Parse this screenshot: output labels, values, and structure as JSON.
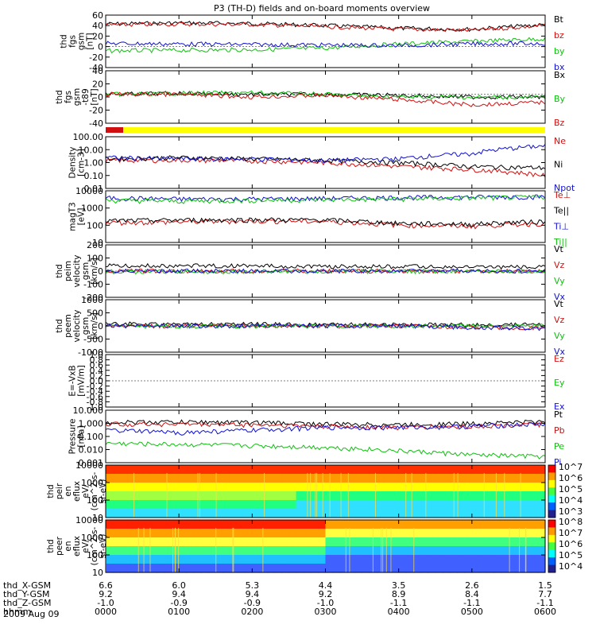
{
  "title": "P3 (TH-D) fields and on-board moments overview",
  "date_label": "2009 Aug 09",
  "colors": {
    "black": "#000000",
    "red": "#d01010",
    "green": "#10c010",
    "blue": "#1010d0",
    "yellow": "#ffff00"
  },
  "ephemeris": {
    "rows": [
      {
        "label": "thd_X-GSM",
        "values": [
          "6.6",
          "6.0",
          "5.3",
          "4.4",
          "3.5",
          "2.6",
          "1.5"
        ]
      },
      {
        "label": "thd_Y-GSM",
        "values": [
          "9.2",
          "9.4",
          "9.4",
          "9.2",
          "8.9",
          "8.4",
          "7.7"
        ]
      },
      {
        "label": "thd_Z-GSM",
        "values": [
          "-1.0",
          "-0.9",
          "-0.9",
          "-1.0",
          "-1.1",
          "-1.1",
          "-1.1"
        ]
      },
      {
        "label": "hhmm",
        "values": [
          "0000",
          "0100",
          "0200",
          "0300",
          "0400",
          "0500",
          "0600"
        ]
      }
    ]
  },
  "chart_data": [
    {
      "type": "line",
      "ylabel": [
        "thd",
        "fgs",
        "gsm",
        "[nT]"
      ],
      "ylim": [
        -40,
        60
      ],
      "scale": "linear",
      "ticks": [
        "60",
        "40",
        "20",
        "0",
        "-20",
        "-40"
      ],
      "legend": [
        "Bt",
        "bz",
        "by",
        "bx"
      ],
      "series": [
        {
          "name": "Bt",
          "color": "black",
          "level": [
            43,
            45,
            44,
            40,
            35,
            33,
            42
          ]
        },
        {
          "name": "bz",
          "color": "red",
          "level": [
            41,
            43,
            42,
            38,
            33,
            31,
            40
          ]
        },
        {
          "name": "by",
          "color": "green",
          "level": [
            -8,
            -7,
            -6,
            -3,
            5,
            10,
            15
          ]
        },
        {
          "name": "bx",
          "color": "blue",
          "level": [
            6,
            5,
            4,
            3,
            2,
            5,
            6
          ]
        }
      ]
    },
    {
      "type": "line",
      "ylabel": [
        "thd",
        "fgs",
        "gsm",
        "-t89",
        "[nT]"
      ],
      "ylim": [
        -55,
        45
      ],
      "scale": "linear",
      "ticks": [
        "40",
        "20",
        "0",
        "-20",
        "-40"
      ],
      "legend": [
        "Bx",
        "By",
        "Bz"
      ],
      "series": [
        {
          "name": "Bx",
          "color": "black",
          "level": [
            0,
            2,
            0,
            0,
            -2,
            -5,
            -5
          ]
        },
        {
          "name": "By",
          "color": "green",
          "level": [
            0,
            2,
            3,
            0,
            -5,
            -5,
            -6
          ]
        },
        {
          "name": "Bz",
          "color": "red",
          "level": [
            0,
            0,
            -5,
            -2,
            -10,
            -20,
            -15
          ]
        }
      ]
    },
    {
      "type": "line",
      "ylabel": [
        "Density",
        "[cm-3]"
      ],
      "ylim": [
        0.01,
        100
      ],
      "scale": "log",
      "ticks": [
        "100.00",
        "10.00",
        "1.00",
        "0.10",
        "0.01"
      ],
      "legend": [
        "Ne",
        "Ni",
        "Npot"
      ],
      "series": [
        {
          "name": "Ne",
          "color": "red",
          "level": [
            1.5,
            1.6,
            1.4,
            1.0,
            0.5,
            0.3,
            0.1
          ]
        },
        {
          "name": "Ni",
          "color": "black",
          "level": [
            2,
            2.5,
            2,
            1.5,
            1.0,
            0.5,
            0.4
          ]
        },
        {
          "name": "Npot",
          "color": "blue",
          "level": [
            2.5,
            2,
            2,
            1.5,
            2,
            5,
            20
          ]
        }
      ]
    },
    {
      "type": "line",
      "ylabel": [
        "magT3",
        "[eV]"
      ],
      "ylim": [
        3,
        20000
      ],
      "scale": "log",
      "ticks": [
        "10000",
        "1000",
        "100",
        "10"
      ],
      "legend": [
        "Te⊥",
        "Te||",
        "Ti⊥",
        "Ti||"
      ],
      "series": [
        {
          "name": "Ti⊥",
          "color": "blue",
          "level": [
            6000,
            5000,
            5000,
            5500,
            6500,
            7000,
            7500
          ]
        },
        {
          "name": "Ti||",
          "color": "green",
          "level": [
            4000,
            3500,
            4000,
            4500,
            5000,
            6000,
            7000
          ]
        },
        {
          "name": "Te⊥",
          "color": "red",
          "level": [
            90,
            100,
            120,
            110,
            60,
            50,
            80
          ]
        },
        {
          "name": "Te||",
          "color": "black",
          "level": [
            120,
            140,
            150,
            140,
            80,
            70,
            110
          ]
        }
      ]
    },
    {
      "type": "line",
      "ylabel": [
        "thd",
        "peim",
        "velocity",
        "gsm",
        "[km/s]"
      ],
      "ylim": [
        -200,
        200
      ],
      "scale": "linear",
      "ticks": [
        "200",
        "100",
        "0",
        "-100",
        "-200"
      ],
      "legend": [
        "Vt",
        "Vz",
        "Vy",
        "Vx"
      ],
      "series": [
        {
          "name": "Vt",
          "color": "black",
          "level": [
            40,
            40,
            40,
            35,
            35,
            30,
            30
          ]
        },
        {
          "name": "Vz",
          "color": "red",
          "level": [
            0,
            0,
            0,
            0,
            0,
            0,
            0
          ]
        },
        {
          "name": "Vy",
          "color": "green",
          "level": [
            -5,
            -5,
            -5,
            -3,
            -3,
            -2,
            -2
          ]
        },
        {
          "name": "Vx",
          "color": "blue",
          "level": [
            0,
            0,
            0,
            0,
            0,
            0,
            0
          ]
        }
      ]
    },
    {
      "type": "line",
      "ylabel": [
        "thd",
        "peem",
        "velocity",
        "gsm",
        "[km/s]"
      ],
      "ylim": [
        -1000,
        1000
      ],
      "scale": "linear",
      "ticks": [
        "1000",
        "500",
        "0",
        "-500",
        "-1000"
      ],
      "legend": [
        "Vt",
        "Vz",
        "Vy",
        "Vx"
      ],
      "series": [
        {
          "name": "Vt",
          "color": "black",
          "level": [
            80,
            60,
            60,
            50,
            40,
            40,
            40
          ]
        },
        {
          "name": "Vz",
          "color": "red",
          "level": [
            0,
            0,
            0,
            0,
            0,
            -50,
            -80
          ]
        },
        {
          "name": "Vy",
          "color": "green",
          "level": [
            -10,
            -10,
            -10,
            0,
            0,
            0,
            0
          ]
        },
        {
          "name": "Vx",
          "color": "blue",
          "level": [
            0,
            0,
            0,
            0,
            0,
            -60,
            -100
          ]
        }
      ]
    },
    {
      "type": "line",
      "ylabel": [
        "E=-VxB",
        "[mV/m]"
      ],
      "ylim": [
        -1,
        1
      ],
      "scale": "linear",
      "ticks": [
        "1.0",
        "0.8",
        "0.6",
        "0.4",
        "0.2",
        "0.0",
        "-0.2",
        "-0.4",
        "-0.6",
        "-0.8",
        "-1.0"
      ],
      "legend": [
        "Ez",
        "Ey",
        "Ex"
      ],
      "series": []
    },
    {
      "type": "line",
      "ylabel": [
        "Pressure",
        "[nPa]"
      ],
      "ylim": [
        0.001,
        10
      ],
      "scale": "log",
      "ticks": [
        "10.000",
        "1.000",
        "0.100",
        "0.010",
        "0.001"
      ],
      "legend": [
        "Pt",
        "Pb",
        "Pe",
        "Pi"
      ],
      "series": [
        {
          "name": "Pt",
          "color": "black",
          "level": [
            1.2,
            1.3,
            1.2,
            0.9,
            0.8,
            1.0,
            1.4
          ]
        },
        {
          "name": "Pb",
          "color": "red",
          "level": [
            0.9,
            0.9,
            0.8,
            0.6,
            0.5,
            0.6,
            0.9
          ]
        },
        {
          "name": "Pi",
          "color": "blue",
          "level": [
            0.3,
            0.2,
            0.3,
            0.5,
            0.5,
            0.6,
            0.9
          ]
        },
        {
          "name": "Pe",
          "color": "green",
          "level": [
            0.03,
            0.025,
            0.02,
            0.015,
            0.008,
            0.004,
            0.003
          ]
        }
      ]
    },
    {
      "type": "heatmap",
      "ylabel": [
        "thd",
        "peir",
        "en",
        "eflux",
        "eV/",
        "(cm^2-s-",
        "sr-eV)"
      ],
      "ylim": [
        10,
        20000
      ],
      "scale": "log",
      "ticks": [
        "10000",
        "1000",
        "100",
        "10"
      ],
      "colorbar": [
        "10^7",
        "10^6",
        "10^5",
        "10^4",
        "10^3"
      ]
    },
    {
      "type": "heatmap",
      "ylabel": [
        "thd",
        "peer",
        "en",
        "eflux",
        "eV/",
        "(cm^2-s-",
        "sr-eV)"
      ],
      "ylim": [
        8,
        20000
      ],
      "scale": "log",
      "ticks": [
        "10000",
        "1000",
        "100",
        "10"
      ],
      "colorbar": [
        "10^8",
        "10^7",
        "10^6",
        "10^5",
        "10^4"
      ]
    }
  ],
  "status_bar": {
    "colors": [
      "red",
      "yellow"
    ],
    "split_fraction": 0.04
  }
}
